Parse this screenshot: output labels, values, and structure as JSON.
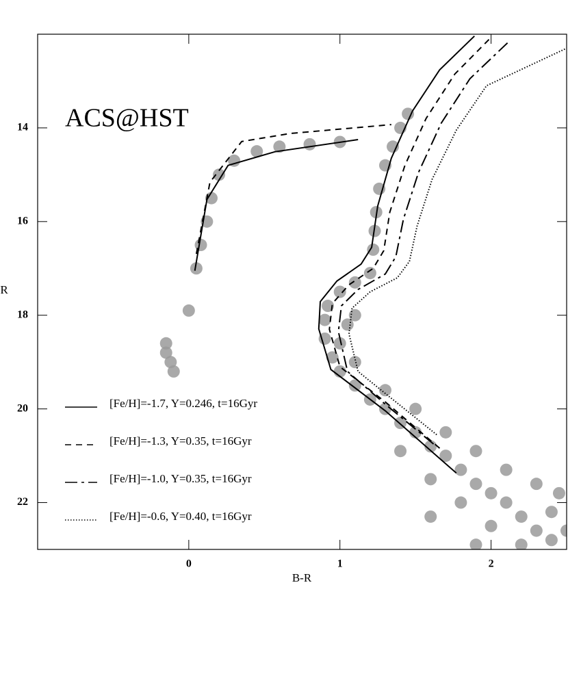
{
  "chart_data": {
    "type": "line",
    "annotation": "ACS@HST",
    "x_label": "B-R",
    "y_label": "R",
    "xlim": [
      -1.0,
      2.5
    ],
    "xticks": [
      0,
      1,
      2
    ],
    "ylim": [
      23,
      12
    ],
    "yticks": [
      14,
      16,
      18,
      20,
      22
    ],
    "stars": {
      "color": "#9a9a9a",
      "x": [
        2.4,
        2.3,
        2.2,
        2.1,
        2.0,
        1.9,
        1.8,
        1.7,
        1.6,
        1.5,
        1.4,
        1.3,
        1.2,
        1.1,
        1.0,
        0.95,
        0.9,
        0.9,
        0.92,
        1.0,
        1.1,
        1.2,
        1.22,
        1.23,
        1.24,
        1.26,
        1.3,
        1.35,
        1.4,
        1.45,
        2.4,
        2.2,
        2.0,
        1.8,
        1.6,
        1.4,
        2.45,
        2.3,
        2.1,
        1.9,
        1.7,
        1.5,
        1.3,
        1.1,
        1.0,
        1.05,
        2.5,
        1.6,
        1.9,
        1.1,
        0.05,
        0.08,
        0.12,
        0.15,
        0.2,
        0.3,
        0.45,
        0.6,
        0.8,
        1.0,
        -0.15,
        -0.12,
        -0.1,
        -0.15,
        0.0
      ],
      "y": [
        22.8,
        22.6,
        22.3,
        22.0,
        21.8,
        21.6,
        21.3,
        21.0,
        20.8,
        20.5,
        20.3,
        20.0,
        19.8,
        19.5,
        19.2,
        18.9,
        18.5,
        18.1,
        17.8,
        17.5,
        17.3,
        17.1,
        16.6,
        16.2,
        15.8,
        15.3,
        14.8,
        14.4,
        14.0,
        13.7,
        22.2,
        22.9,
        22.5,
        22.0,
        21.5,
        20.9,
        21.8,
        21.6,
        21.3,
        20.9,
        20.5,
        20.0,
        19.6,
        19.0,
        18.6,
        18.2,
        22.6,
        22.3,
        22.9,
        18.0,
        17.0,
        16.5,
        16.0,
        15.5,
        15.0,
        14.7,
        14.5,
        14.4,
        14.35,
        14.3,
        18.8,
        19.0,
        19.2,
        18.6,
        17.9
      ]
    },
    "series": [
      {
        "name": "[Fe/H]=-1.7, Y=0.246, t=16Gyr",
        "color": "#000000",
        "dash": "none",
        "x": [
          1.77,
          1.3,
          0.94,
          0.86,
          0.87,
          0.98,
          1.14,
          1.21,
          1.25,
          1.34,
          1.48,
          1.66,
          1.89,
          null,
          0.04,
          0.12,
          0.26,
          0.57,
          1.12
        ],
        "values": [
          21.37,
          20.04,
          19.16,
          18.29,
          17.71,
          17.27,
          16.91,
          16.55,
          15.67,
          14.65,
          13.64,
          12.76,
          12.04,
          null,
          17.05,
          15.53,
          14.8,
          14.51,
          14.25
        ]
      },
      {
        "name": "[Fe/H]=-1.3, Y=0.35, t=16Gyr",
        "color": "#000000",
        "dash": "9 7",
        "x": [
          1.66,
          1.3,
          1.0,
          0.93,
          0.95,
          1.06,
          1.22,
          1.29,
          1.33,
          1.43,
          1.57,
          1.76,
          1.99,
          null,
          0.05,
          0.14,
          0.35,
          0.67,
          1.34
        ],
        "values": [
          20.84,
          19.85,
          19.1,
          18.3,
          17.75,
          17.35,
          17.0,
          16.62,
          15.8,
          14.8,
          13.8,
          12.85,
          12.1,
          null,
          16.69,
          15.16,
          14.29,
          14.12,
          13.93
        ]
      },
      {
        "name": "[Fe/H]=-1.0, Y=0.35, t=16Gyr",
        "color": "#000000",
        "dash": "18 6 4 6",
        "x": [
          1.62,
          1.3,
          1.05,
          0.99,
          1.01,
          1.12,
          1.3,
          1.37,
          1.42,
          1.52,
          1.67,
          1.86,
          2.12
        ],
        "values": [
          20.75,
          19.9,
          19.2,
          18.35,
          17.8,
          17.45,
          17.12,
          16.75,
          15.95,
          14.95,
          13.9,
          12.95,
          12.15
        ]
      },
      {
        "name": "[Fe/H]=-0.6, Y=0.40, t=16Gyr",
        "color": "#000000",
        "dash": "1.5 2.5",
        "x": [
          1.64,
          1.35,
          1.12,
          1.06,
          1.08,
          1.2,
          1.38,
          1.46,
          1.51,
          1.61,
          1.77,
          1.97,
          2.5
        ],
        "values": [
          20.55,
          19.8,
          19.2,
          18.4,
          17.85,
          17.5,
          17.2,
          16.85,
          16.1,
          15.1,
          14.05,
          13.1,
          12.3
        ]
      }
    ]
  }
}
